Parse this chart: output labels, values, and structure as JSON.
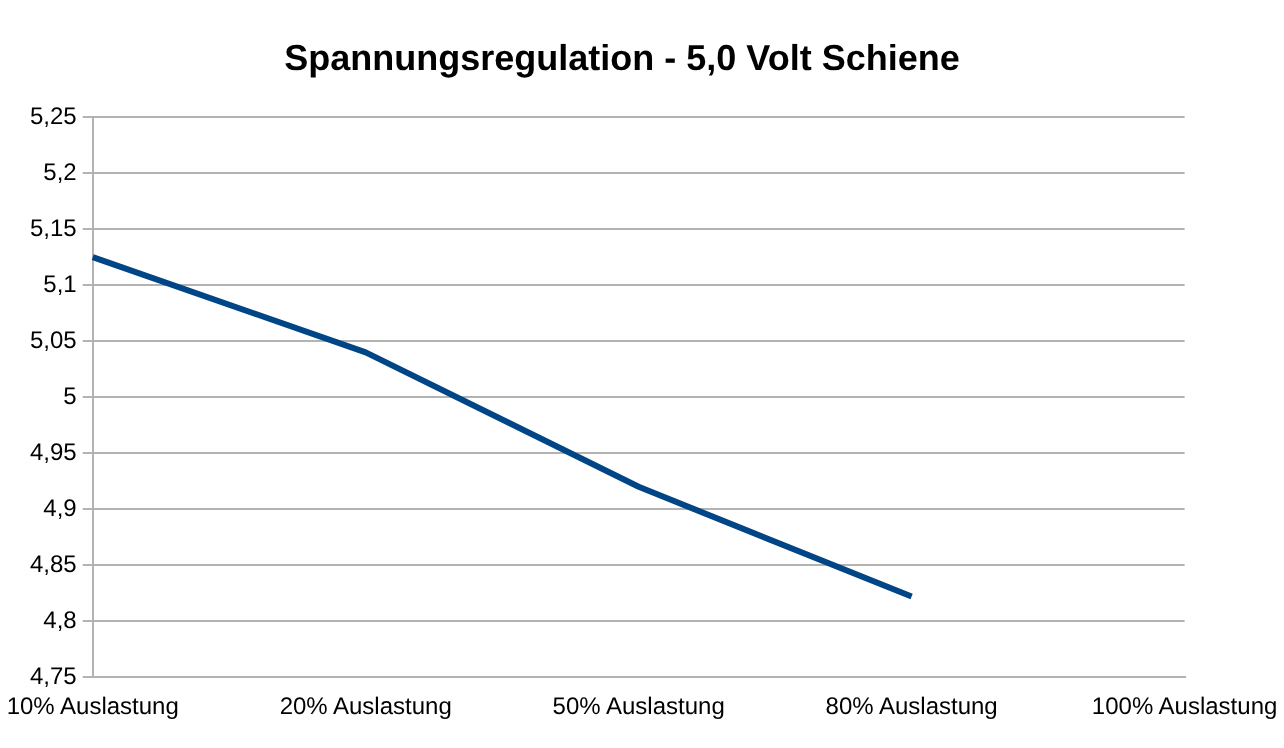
{
  "chart_data": {
    "type": "line",
    "title": "Spannungsregulation - 5,0 Volt Schiene",
    "categories": [
      "10% Auslastung",
      "20% Auslastung",
      "50% Auslastung",
      "80% Auslastung",
      "100% Auslastung"
    ],
    "series": [
      {
        "color": "#004586",
        "values": [
          5.125,
          5.04,
          4.92,
          4.822,
          null
        ]
      }
    ],
    "ylim": [
      4.75,
      5.25
    ],
    "yticks": [
      {
        "value": 4.75,
        "label": "4,75"
      },
      {
        "value": 4.8,
        "label": "4,8"
      },
      {
        "value": 4.85,
        "label": "4,85"
      },
      {
        "value": 4.9,
        "label": "4,9"
      },
      {
        "value": 4.95,
        "label": "4,95"
      },
      5,
      {
        "value": 5.05,
        "label": "5,05"
      },
      {
        "value": 5.1,
        "label": "5,1"
      },
      {
        "value": 5.15,
        "label": "5,15"
      },
      {
        "value": 5.2,
        "label": "5,2"
      },
      {
        "value": 5.25,
        "label": "5,25"
      }
    ],
    "grid": "y",
    "legend": false,
    "marker": "none",
    "line_style": "solid"
  }
}
